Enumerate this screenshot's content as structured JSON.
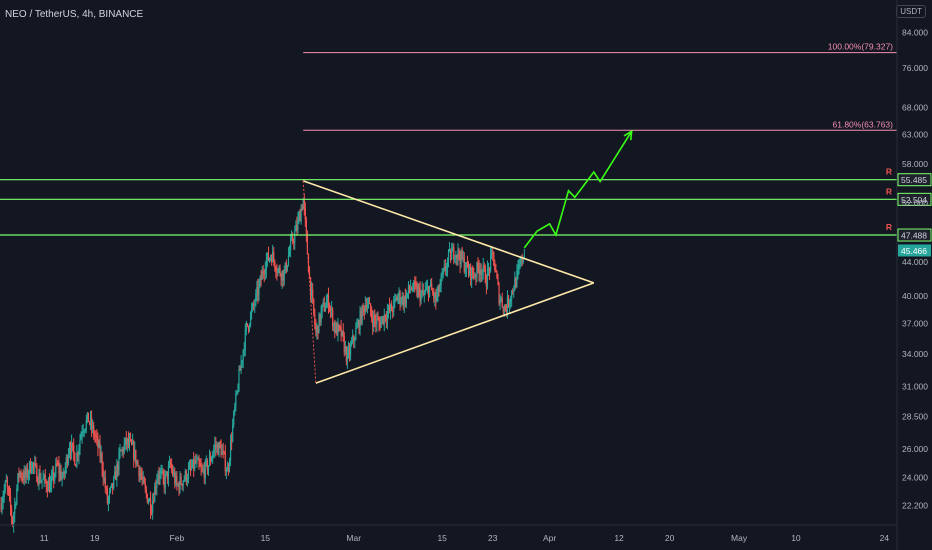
{
  "header": {
    "title": "NEO / TetherUS, 4h, BINANCE",
    "currency_badge": "USDT"
  },
  "colors": {
    "background": "#131722",
    "candle_up": "#26a69a",
    "candle_down": "#ef5350",
    "resistance": "#7cff6b",
    "fib": "#f48fb1",
    "triangle": "#ffe9a8",
    "projection": "#39ff14",
    "resistance_marker": "#ef5350",
    "price_badge_bg": "#26a69a"
  },
  "chart_data": {
    "type": "candlestick",
    "symbol": "NEO/USDT",
    "interval": "4h",
    "y_scale": "log",
    "ylim": [
      21.0,
      92.0
    ],
    "xlim": [
      "2021-01-04",
      "2021-05-26"
    ],
    "grid": false,
    "y_ticks": [
      22.2,
      24.0,
      26.0,
      28.5,
      31.0,
      34.0,
      37.0,
      40.0,
      44.0,
      52.0,
      58.0,
      63.0,
      68.0,
      76.0,
      84.0
    ],
    "x_ticks": [
      {
        "label": "11",
        "date": "2021-01-11"
      },
      {
        "label": "19",
        "date": "2021-01-19"
      },
      {
        "label": "Feb",
        "date": "2021-02-01"
      },
      {
        "label": "15",
        "date": "2021-02-15"
      },
      {
        "label": "Mar",
        "date": "2021-03-01"
      },
      {
        "label": "15",
        "date": "2021-03-15"
      },
      {
        "label": "23",
        "date": "2021-03-23"
      },
      {
        "label": "Apr",
        "date": "2021-04-01"
      },
      {
        "label": "12",
        "date": "2021-04-12"
      },
      {
        "label": "20",
        "date": "2021-04-20"
      },
      {
        "label": "May",
        "date": "2021-05-01"
      },
      {
        "label": "10",
        "date": "2021-05-10"
      },
      {
        "label": "24",
        "date": "2021-05-24"
      }
    ],
    "price_path": [
      [
        "2021-01-04",
        22.2
      ],
      [
        "2021-01-05",
        23.6
      ],
      [
        "2021-01-06",
        21.2
      ],
      [
        "2021-01-07",
        24.4
      ],
      [
        "2021-01-08",
        24.0
      ],
      [
        "2021-01-09",
        25.0
      ],
      [
        "2021-01-10",
        24.1
      ],
      [
        "2021-01-12",
        23.4
      ],
      [
        "2021-01-13",
        24.8
      ],
      [
        "2021-01-14",
        23.9
      ],
      [
        "2021-01-15",
        26.4
      ],
      [
        "2021-01-16",
        25.2
      ],
      [
        "2021-01-17",
        27.6
      ],
      [
        "2021-01-18",
        28.3
      ],
      [
        "2021-01-19",
        27.0
      ],
      [
        "2021-01-20",
        25.4
      ],
      [
        "2021-01-21",
        22.4
      ],
      [
        "2021-01-22",
        23.6
      ],
      [
        "2021-01-23",
        25.6
      ],
      [
        "2021-01-24",
        26.5
      ],
      [
        "2021-01-25",
        26.0
      ],
      [
        "2021-01-26",
        24.6
      ],
      [
        "2021-01-27",
        23.0
      ],
      [
        "2021-01-28",
        22.2
      ],
      [
        "2021-01-29",
        24.4
      ],
      [
        "2021-01-30",
        23.7
      ],
      [
        "2021-01-31",
        24.8
      ],
      [
        "2021-02-01",
        23.4
      ],
      [
        "2021-02-02",
        23.9
      ],
      [
        "2021-02-03",
        24.4
      ],
      [
        "2021-02-04",
        25.0
      ],
      [
        "2021-02-05",
        24.3
      ],
      [
        "2021-02-06",
        24.9
      ],
      [
        "2021-02-07",
        26.2
      ],
      [
        "2021-02-08",
        26.0
      ],
      [
        "2021-02-09",
        24.4
      ],
      [
        "2021-02-10",
        28.4
      ],
      [
        "2021-02-11",
        32.5
      ],
      [
        "2021-02-12",
        36.5
      ],
      [
        "2021-02-13",
        38.5
      ],
      [
        "2021-02-14",
        41.0
      ],
      [
        "2021-02-15",
        44.0
      ],
      [
        "2021-02-16",
        45.0
      ],
      [
        "2021-02-17",
        43.0
      ],
      [
        "2021-02-18",
        42.5
      ],
      [
        "2021-02-19",
        46.0
      ],
      [
        "2021-02-20",
        48.5
      ],
      [
        "2021-02-21",
        52.5
      ],
      [
        "2021-02-22",
        42.0
      ],
      [
        "2021-02-23",
        36.0
      ],
      [
        "2021-02-24",
        38.5
      ],
      [
        "2021-02-25",
        39.5
      ],
      [
        "2021-02-26",
        36.5
      ],
      [
        "2021-02-27",
        36.0
      ],
      [
        "2021-02-28",
        33.5
      ],
      [
        "2021-03-01",
        35.5
      ],
      [
        "2021-03-02",
        37.5
      ],
      [
        "2021-03-03",
        39.5
      ],
      [
        "2021-03-04",
        37.5
      ],
      [
        "2021-03-05",
        37.0
      ],
      [
        "2021-03-06",
        38.0
      ],
      [
        "2021-03-07",
        38.5
      ],
      [
        "2021-03-08",
        40.0
      ],
      [
        "2021-03-09",
        39.5
      ],
      [
        "2021-03-10",
        41.0
      ],
      [
        "2021-03-11",
        40.5
      ],
      [
        "2021-03-12",
        40.0
      ],
      [
        "2021-03-13",
        41.0
      ],
      [
        "2021-03-14",
        39.5
      ],
      [
        "2021-03-15",
        42.0
      ],
      [
        "2021-03-16",
        44.5
      ],
      [
        "2021-03-17",
        45.5
      ],
      [
        "2021-03-18",
        44.5
      ],
      [
        "2021-03-19",
        43.0
      ],
      [
        "2021-03-20",
        42.5
      ],
      [
        "2021-03-21",
        43.5
      ],
      [
        "2021-03-22",
        42.0
      ],
      [
        "2021-03-23",
        45.0
      ],
      [
        "2021-03-24",
        40.0
      ],
      [
        "2021-03-25",
        38.5
      ],
      [
        "2021-03-26",
        40.5
      ],
      [
        "2021-03-27",
        42.5
      ],
      [
        "2021-03-28",
        45.5
      ]
    ],
    "levels": [
      {
        "price": 55.485,
        "label": "55.485",
        "kind": "resistance",
        "marker": "R",
        "start": "2021-01-04"
      },
      {
        "price": 52.504,
        "label": "52.504",
        "kind": "resistance",
        "marker": "R",
        "start": "2021-01-04"
      },
      {
        "price": 47.488,
        "label": "47.488",
        "kind": "resistance",
        "marker": "R",
        "start": "2021-01-04"
      },
      {
        "price": 79.327,
        "label": "100.00%(79.327)",
        "kind": "fib",
        "start": "2021-02-21"
      },
      {
        "price": 63.763,
        "label": "61.80%(63.763)",
        "kind": "fib",
        "start": "2021-02-21"
      }
    ],
    "last_price": {
      "price": 45.466,
      "label": "45.466"
    },
    "triangle": {
      "upper": [
        [
          "2021-02-21",
          55.3
        ],
        [
          "2021-04-08",
          41.5
        ]
      ],
      "lower": [
        [
          "2021-02-23",
          31.3
        ],
        [
          "2021-04-08",
          41.5
        ]
      ]
    },
    "projection": [
      [
        "2021-03-28",
        45.8
      ],
      [
        "2021-03-30",
        48.0
      ],
      [
        "2021-04-01",
        49.0
      ],
      [
        "2021-04-02",
        47.5
      ],
      [
        "2021-04-04",
        53.8
      ],
      [
        "2021-04-05",
        52.8
      ],
      [
        "2021-04-08",
        56.7
      ],
      [
        "2021-04-09",
        55.2
      ],
      [
        "2021-04-14",
        63.6
      ]
    ]
  }
}
